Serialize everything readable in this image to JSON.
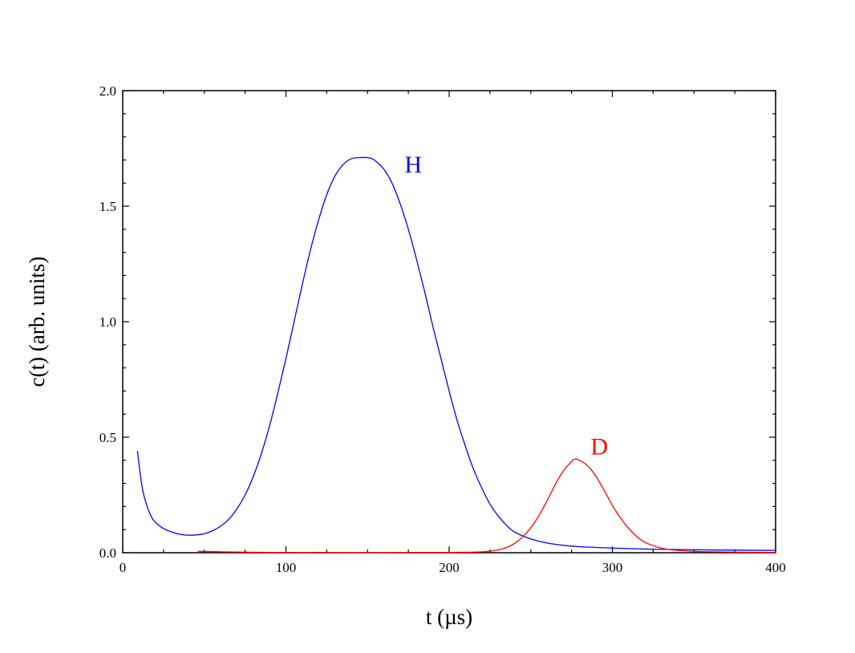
{
  "chart_data": {
    "type": "line",
    "xlabel": "t (µs)",
    "ylabel": "c(t) (arb. units)",
    "xlim": [
      0,
      400
    ],
    "ylim": [
      0,
      2.0
    ],
    "x_ticks": [
      0,
      100,
      200,
      300,
      400
    ],
    "x_tick_labels": [
      "0",
      "100",
      "200",
      "300",
      "400"
    ],
    "y_ticks": [
      0,
      0.5,
      1.0,
      1.5,
      2.0
    ],
    "y_tick_labels": [
      "0.0",
      "0.5",
      "1.0",
      "1.5",
      "2.0"
    ],
    "grid": false,
    "legend": "none",
    "series": [
      {
        "name": "H",
        "color": "#0000ff",
        "label_anchor": [
          178,
          1.68
        ],
        "x": [
          9,
          12,
          15,
          18,
          21,
          25,
          30,
          35,
          40,
          45,
          50,
          55,
          60,
          65,
          70,
          75,
          80,
          85,
          90,
          95,
          100,
          105,
          110,
          115,
          120,
          125,
          130,
          135,
          140,
          145,
          150,
          153,
          155,
          160,
          165,
          170,
          175,
          180,
          185,
          190,
          195,
          200,
          205,
          210,
          215,
          220,
          225,
          230,
          235,
          240,
          250,
          260,
          270,
          280,
          300,
          320,
          340,
          360,
          380,
          400
        ],
        "y": [
          0.44,
          0.28,
          0.2,
          0.15,
          0.125,
          0.105,
          0.09,
          0.08,
          0.076,
          0.077,
          0.082,
          0.095,
          0.115,
          0.145,
          0.19,
          0.25,
          0.33,
          0.43,
          0.55,
          0.69,
          0.84,
          1.0,
          1.16,
          1.31,
          1.44,
          1.55,
          1.63,
          1.68,
          1.705,
          1.71,
          1.71,
          1.705,
          1.695,
          1.66,
          1.6,
          1.51,
          1.4,
          1.27,
          1.13,
          0.98,
          0.84,
          0.7,
          0.57,
          0.46,
          0.36,
          0.28,
          0.21,
          0.16,
          0.12,
          0.09,
          0.06,
          0.042,
          0.032,
          0.026,
          0.02,
          0.016,
          0.014,
          0.012,
          0.011,
          0.01
        ]
      },
      {
        "name": "D",
        "color": "#ff0000",
        "label_anchor": [
          292,
          0.46
        ],
        "x": [
          46,
          60,
          80,
          100,
          120,
          140,
          160,
          180,
          200,
          210,
          220,
          225,
          230,
          235,
          240,
          245,
          250,
          255,
          260,
          265,
          270,
          275,
          277,
          280,
          285,
          290,
          295,
          300,
          305,
          310,
          315,
          320,
          330,
          340,
          350,
          360,
          380,
          400
        ],
        "y": [
          0.006,
          0.004,
          0.002,
          0.001,
          0.001,
          0.0005,
          0.0005,
          0.001,
          0.001,
          0.002,
          0.004,
          0.007,
          0.012,
          0.022,
          0.04,
          0.068,
          0.108,
          0.16,
          0.225,
          0.295,
          0.355,
          0.395,
          0.405,
          0.4,
          0.375,
          0.33,
          0.27,
          0.205,
          0.15,
          0.105,
          0.07,
          0.045,
          0.02,
          0.01,
          0.006,
          0.004,
          0.002,
          0.001
        ]
      }
    ]
  }
}
